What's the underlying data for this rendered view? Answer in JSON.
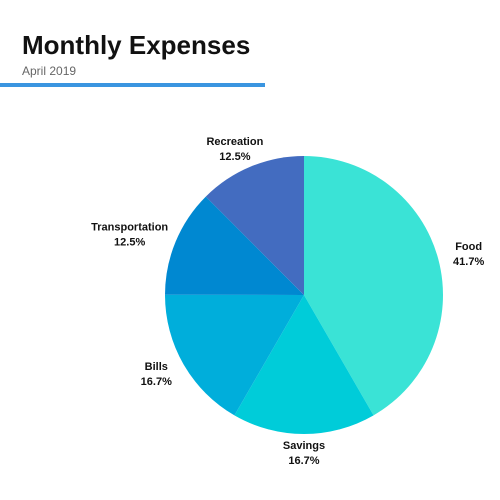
{
  "chart_data": {
    "type": "pie",
    "title": "Monthly Expenses",
    "subtitle": "April 2019",
    "categories": [
      "Food",
      "Savings",
      "Bills",
      "Transportation",
      "Recreation"
    ],
    "values": [
      41.7,
      16.7,
      16.7,
      12.5,
      12.5
    ],
    "value_labels": [
      "41.7%",
      "16.7%",
      "16.7%",
      "12.5%",
      "12.5%"
    ],
    "colors": [
      "#3ae3d6",
      "#00ccd9",
      "#00aedb",
      "#0088d1",
      "#436cc0"
    ]
  }
}
